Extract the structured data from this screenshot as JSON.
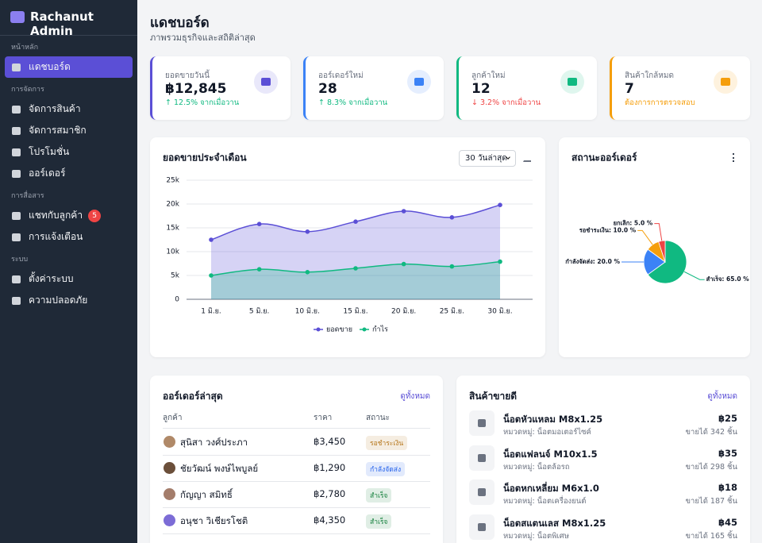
{
  "sidebar": {
    "brand": "Rachanut Admin",
    "sections": [
      {
        "title": "หน้าหลัก",
        "items": [
          {
            "label": "แดชบอร์ด",
            "active": true
          }
        ]
      },
      {
        "title": "การจัดการ",
        "items": [
          {
            "label": "จัดการสินค้า"
          },
          {
            "label": "จัดการสมาชิก"
          },
          {
            "label": "โปรโมชั่น"
          },
          {
            "label": "ออร์เดอร์"
          }
        ]
      },
      {
        "title": "การสื่อสาร",
        "items": [
          {
            "label": "แชทกับลูกค้า",
            "badge": 5
          },
          {
            "label": "การแจ้งเตือน"
          }
        ]
      },
      {
        "title": "ระบบ",
        "items": [
          {
            "label": "ตั้งค่าระบบ"
          },
          {
            "label": "ความปลอดภัย"
          }
        ]
      }
    ]
  },
  "header": {
    "title": "แดชบอร์ด",
    "subtitle": "ภาพรวมธุรกิจและสถิติล่าสุด"
  },
  "stats": [
    {
      "label": "ยอดขายวันนี้",
      "value": "฿12,845",
      "change": "↑ 12.5% จากเมื่อวาน",
      "color": "#5b4fd6",
      "change_color": "#10b981"
    },
    {
      "label": "ออร์เดอร์ใหม่",
      "value": "28",
      "change": "↑ 8.3% จากเมื่อวาน",
      "color": "#3b82f6",
      "change_color": "#10b981"
    },
    {
      "label": "ลูกค้าใหม่",
      "value": "12",
      "change": "↓ 3.2% จากเมื่อวาน",
      "color": "#10b981",
      "change_color": "#ef4444"
    },
    {
      "label": "สินค้าใกล้หมด",
      "value": "7",
      "change": "ต้องการการตรวจสอบ",
      "color": "#f59e0b",
      "change_color": "#f59e0b"
    }
  ],
  "chart_data": [
    {
      "type": "line",
      "title": "ยอดขายประจำเดือน",
      "filter": "30 วันล่าสุด",
      "categories": [
        "1 มิ.ย.",
        "5 มิ.ย.",
        "10 มิ.ย.",
        "15 มิ.ย.",
        "20 มิ.ย.",
        "25 มิ.ย.",
        "30 มิ.ย."
      ],
      "series": [
        {
          "name": "ยอดขาย",
          "color": "#5b4fd6",
          "values": [
            12500,
            15800,
            14200,
            16300,
            18500,
            17200,
            19800
          ]
        },
        {
          "name": "กำไร",
          "color": "#10b981",
          "values": [
            5000,
            6300,
            5700,
            6500,
            7400,
            6900,
            7900
          ]
        }
      ],
      "ylim": [
        0,
        25000
      ],
      "yticks": [
        0,
        {
          "value": 5000,
          "label": "5k"
        },
        {
          "value": 10000,
          "label": "10k"
        },
        {
          "value": 15000,
          "label": "15k"
        },
        {
          "value": 20000,
          "label": "20k"
        },
        {
          "value": 25000,
          "label": "25k"
        }
      ],
      "grid": true,
      "area": true
    },
    {
      "type": "pie",
      "title": "สถานะออร์เดอร์",
      "labels": [
        "สำเร็จ: 65.0 %",
        "กำลังจัดส่ง: 20.0 %",
        "รอชำระเงิน: 10.0 %",
        "ยกเลิก: 5.0 %"
      ],
      "values": [
        65,
        20,
        10,
        5
      ],
      "colors": [
        "#10b981",
        "#3b82f6",
        "#f59e0b",
        "#ef4444"
      ]
    }
  ],
  "orders": {
    "title": "ออร์เดอร์ล่าสุด",
    "link": "ดูทั้งหมด",
    "columns": [
      "ลูกค้า",
      "ราคา",
      "สถานะ"
    ],
    "rows": [
      {
        "name": "สุนิสา วงศ์ประภา",
        "price": "฿3,450",
        "status": "รอชำระเงิน",
        "status_color": "#b7791f"
      },
      {
        "name": "ชัยวัฒน์ พงษ์ไพบูลย์",
        "price": "฿1,290",
        "status": "กำลังจัดส่ง",
        "status_color": "#2563eb"
      },
      {
        "name": "กัญญา สมิทธิ์",
        "price": "฿2,780",
        "status": "สำเร็จ",
        "status_color": "#15803d"
      },
      {
        "name": "อนุชา วิเชียรโชติ",
        "price": "฿4,350",
        "status": "สำเร็จ",
        "status_color": "#15803d"
      }
    ]
  },
  "products": {
    "title": "สินค้าขายดี",
    "link": "ดูทั้งหมด",
    "items": [
      {
        "name": "น็อตหัวแหลม M8x1.25",
        "category": "หมวดหมู่: น็อตมอเตอร์ไซค์",
        "price": "฿25",
        "sold": "ขายได้ 342 ชิ้น"
      },
      {
        "name": "น็อตแฟลนจ์ M10x1.5",
        "category": "หมวดหมู่: น็อตล้อรถ",
        "price": "฿35",
        "sold": "ขายได้ 298 ชิ้น"
      },
      {
        "name": "น็อตหกเหลี่ยม M6x1.0",
        "category": "หมวดหมู่: น็อตเครื่องยนต์",
        "price": "฿18",
        "sold": "ขายได้ 187 ชิ้น"
      },
      {
        "name": "น็อตสแตนเลส M8x1.25",
        "category": "หมวดหมู่: น็อตพิเศษ",
        "price": "฿45",
        "sold": "ขายได้ 165 ชิ้น"
      }
    ]
  }
}
